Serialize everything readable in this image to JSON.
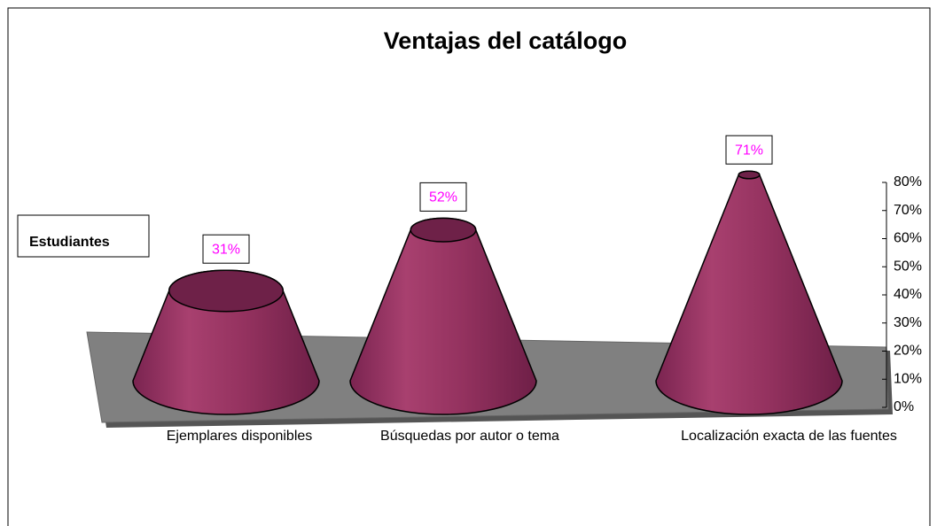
{
  "chart_data": {
    "type": "cone",
    "title": "Ventajas del catálogo",
    "categories": [
      "Ejemplares disponibles",
      "Búsquedas por autor o tema",
      "Localización exacta de las fuentes"
    ],
    "series": [
      {
        "name": "Estudiantes",
        "color": "#993366",
        "values": [
          31,
          52,
          71
        ],
        "value_labels": [
          "31%",
          "52%",
          "71%"
        ]
      }
    ],
    "ylim": [
      0,
      80
    ],
    "yticks": [
      {
        "value": 0,
        "label": "0%"
      },
      {
        "value": 10,
        "label": "10%"
      },
      {
        "value": 20,
        "label": "20%"
      },
      {
        "value": 30,
        "label": "30%"
      },
      {
        "value": 40,
        "label": "40%"
      },
      {
        "value": 50,
        "label": "50%"
      },
      {
        "value": 60,
        "label": "60%"
      },
      {
        "value": 70,
        "label": "70%"
      },
      {
        "value": 80,
        "label": "80%"
      }
    ],
    "legend": "left"
  }
}
